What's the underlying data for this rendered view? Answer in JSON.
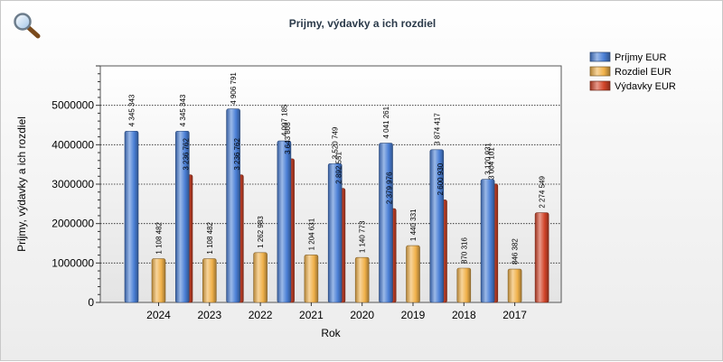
{
  "chart_data": {
    "type": "bar",
    "title": "Prijmy, výdavky a ich rozdiel",
    "xlabel": "Rok",
    "ylabel": "Prijmy, výdavky a ich rozdiel",
    "categories": [
      "2024",
      "2023",
      "2022",
      "2021",
      "2020",
      "2019",
      "2018",
      "2017"
    ],
    "ylim": [
      0,
      6000000
    ],
    "yticks": [
      0,
      1000000,
      2000000,
      3000000,
      4000000,
      5000000
    ],
    "grid": true,
    "legend_position": "top-right",
    "series": [
      {
        "name": "Príjmy EUR",
        "color": "#4a7fd6",
        "values": [
          4345343,
          4345343,
          4906791,
          4097185,
          3520749,
          4041261,
          3874417,
          3120931
        ],
        "labels": [
          "4 345 343",
          "4 345 343",
          "4 906 791",
          "4 097 185",
          "3 520 749",
          "4 041 261",
          "3 874 417",
          "3 120 931"
        ]
      },
      {
        "name": "Rozdiel EUR",
        "color": "#f0b14a",
        "values": [
          1108482,
          1108482,
          1262983,
          1204631,
          1140773,
          1440331,
          870316,
          846382
        ],
        "labels": [
          "1 108 482",
          "1 108 482",
          "1 262 983",
          "1 204 631",
          "1 140 773",
          "1 440 331",
          "870 316",
          "846 382"
        ]
      },
      {
        "name": "Výdavky EUR",
        "color": "#d2452a",
        "values": [
          3236762,
          3236762,
          3643808,
          2892551,
          2379976,
          2600930,
          3004101,
          2274549
        ],
        "labels": [
          "3 236 762",
          "3 236 762",
          "3 643 808",
          "2 892 551",
          "2 379 976",
          "2 600 930",
          "3 004 101",
          "2 274 549"
        ]
      }
    ]
  },
  "tools": {
    "zoom_icon": "magnifier-icon"
  }
}
